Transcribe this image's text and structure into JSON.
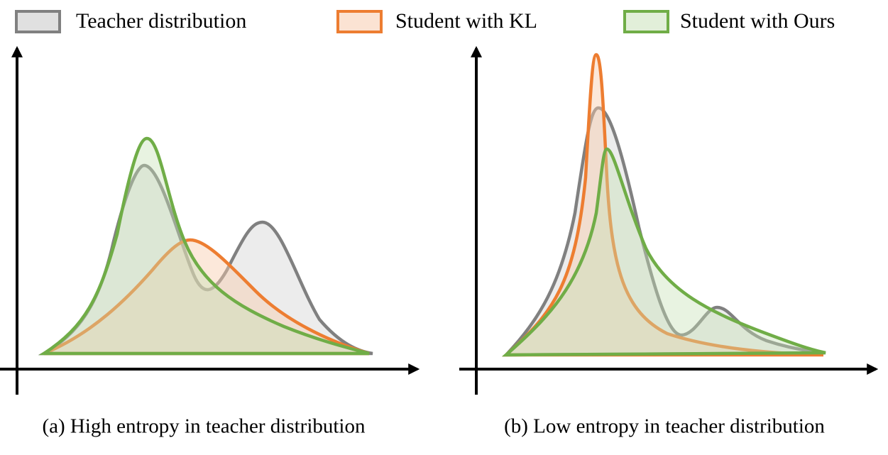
{
  "legend": [
    {
      "label": "Teacher distribution"
    },
    {
      "label": "Student with KL"
    },
    {
      "label": "Student with Ours"
    }
  ],
  "panels": [
    {
      "caption": "(a) High entropy in teacher distribution"
    },
    {
      "caption": "(b) Low entropy in teacher distribution"
    }
  ]
}
